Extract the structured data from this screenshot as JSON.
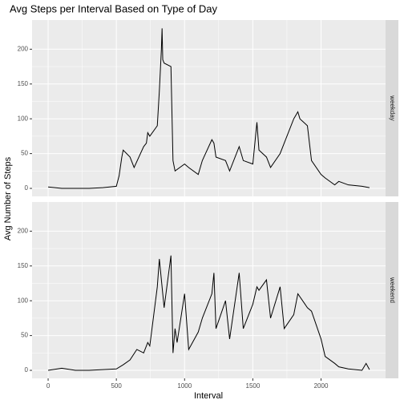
{
  "chart_data": {
    "type": "line",
    "title": "Avg Steps per Interval Based on Type of Day",
    "x_label": "Interval",
    "y_label": "Avg Number of Steps",
    "xlim": [
      -117.75,
      2472.75
    ],
    "ylim": [
      -11.5,
      241.9
    ],
    "xticks": [
      0,
      500,
      1000,
      1500,
      2000
    ],
    "yticks": [
      0,
      50,
      100,
      150,
      200
    ],
    "grid": true,
    "series": [
      {
        "name": "weekday",
        "color": "#000000",
        "x": [
          0,
          100,
          200,
          300,
          400,
          500,
          520,
          540,
          550,
          600,
          630,
          700,
          720,
          730,
          745,
          800,
          815,
          830,
          835,
          840,
          850,
          900,
          915,
          930,
          1000,
          1030,
          1100,
          1130,
          1200,
          1215,
          1230,
          1300,
          1330,
          1400,
          1430,
          1500,
          1530,
          1545,
          1600,
          1630,
          1700,
          1730,
          1800,
          1830,
          1845,
          1900,
          1930,
          2000,
          2030,
          2100,
          2130,
          2200,
          2300,
          2355
        ],
        "values": [
          2,
          0,
          0,
          0,
          1,
          3,
          18,
          45,
          55,
          45,
          30,
          60,
          65,
          80,
          75,
          90,
          140,
          200,
          230,
          185,
          180,
          175,
          40,
          25,
          35,
          30,
          20,
          40,
          70,
          65,
          45,
          40,
          25,
          60,
          40,
          35,
          95,
          55,
          45,
          30,
          50,
          65,
          100,
          110,
          100,
          90,
          40,
          20,
          15,
          5,
          10,
          5,
          3,
          1
        ]
      },
      {
        "name": "weekend",
        "color": "#000000",
        "x": [
          0,
          100,
          200,
          300,
          400,
          500,
          550,
          600,
          650,
          700,
          730,
          745,
          800,
          815,
          830,
          850,
          900,
          915,
          930,
          945,
          1000,
          1030,
          1100,
          1130,
          1200,
          1215,
          1230,
          1300,
          1330,
          1400,
          1430,
          1500,
          1530,
          1545,
          1600,
          1630,
          1700,
          1730,
          1800,
          1830,
          1900,
          1930,
          2000,
          2030,
          2100,
          2130,
          2200,
          2300,
          2330,
          2355
        ],
        "values": [
          0,
          3,
          0,
          0,
          1,
          2,
          8,
          15,
          30,
          25,
          40,
          35,
          120,
          160,
          130,
          90,
          165,
          25,
          60,
          40,
          110,
          30,
          55,
          75,
          110,
          140,
          60,
          100,
          45,
          140,
          60,
          95,
          120,
          115,
          130,
          75,
          120,
          60,
          80,
          110,
          90,
          85,
          45,
          20,
          10,
          5,
          2,
          0,
          10,
          1
        ]
      }
    ]
  }
}
